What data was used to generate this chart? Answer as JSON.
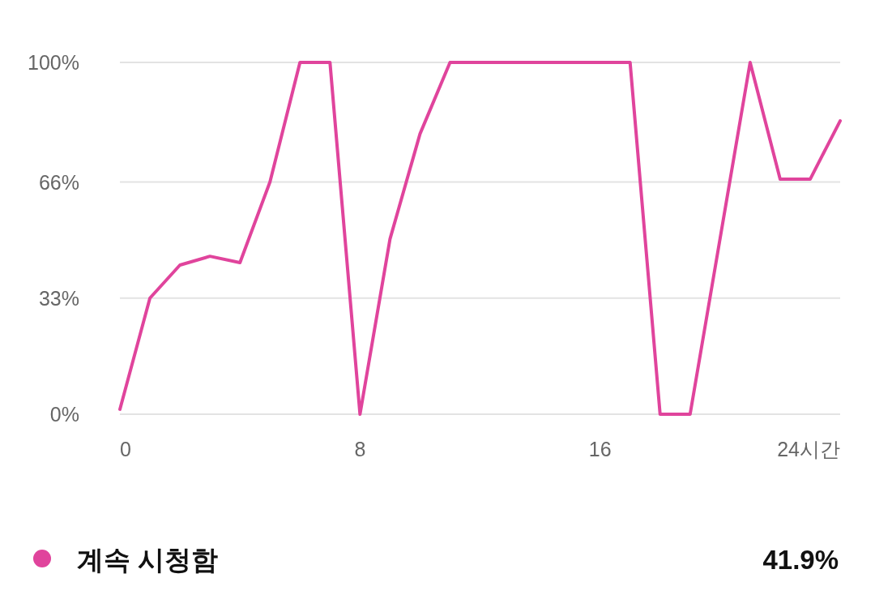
{
  "chart_data": {
    "type": "line",
    "x": [
      0,
      1,
      2,
      3,
      4,
      5,
      6,
      7,
      8,
      9,
      10,
      11,
      12,
      13,
      14,
      15,
      16,
      17,
      18,
      19,
      20,
      21,
      22,
      23,
      24
    ],
    "series": [
      {
        "name": "계속 시청함",
        "color": "#e0449c",
        "values": [
          1.4,
          33,
          42.4,
          44.9,
          43.1,
          66,
          100,
          100,
          0,
          49.8,
          79.7,
          100,
          100,
          100,
          100,
          100,
          100,
          100,
          0,
          0,
          50,
          100,
          66.8,
          66.8,
          83.4
        ]
      }
    ],
    "xlim": [
      0,
      24
    ],
    "xticks": [
      0,
      8,
      16,
      {
        "value": 24,
        "label": "24시간"
      }
    ],
    "ylim": [
      0,
      100
    ],
    "yticks": [
      {
        "value": 0,
        "label": "0%"
      },
      {
        "value": 33,
        "label": "33%"
      },
      {
        "value": 66,
        "label": "66%"
      },
      {
        "value": 100,
        "label": "100%"
      }
    ],
    "grid": "y",
    "legend": "bottom",
    "annotations": [
      "41.9%"
    ]
  }
}
